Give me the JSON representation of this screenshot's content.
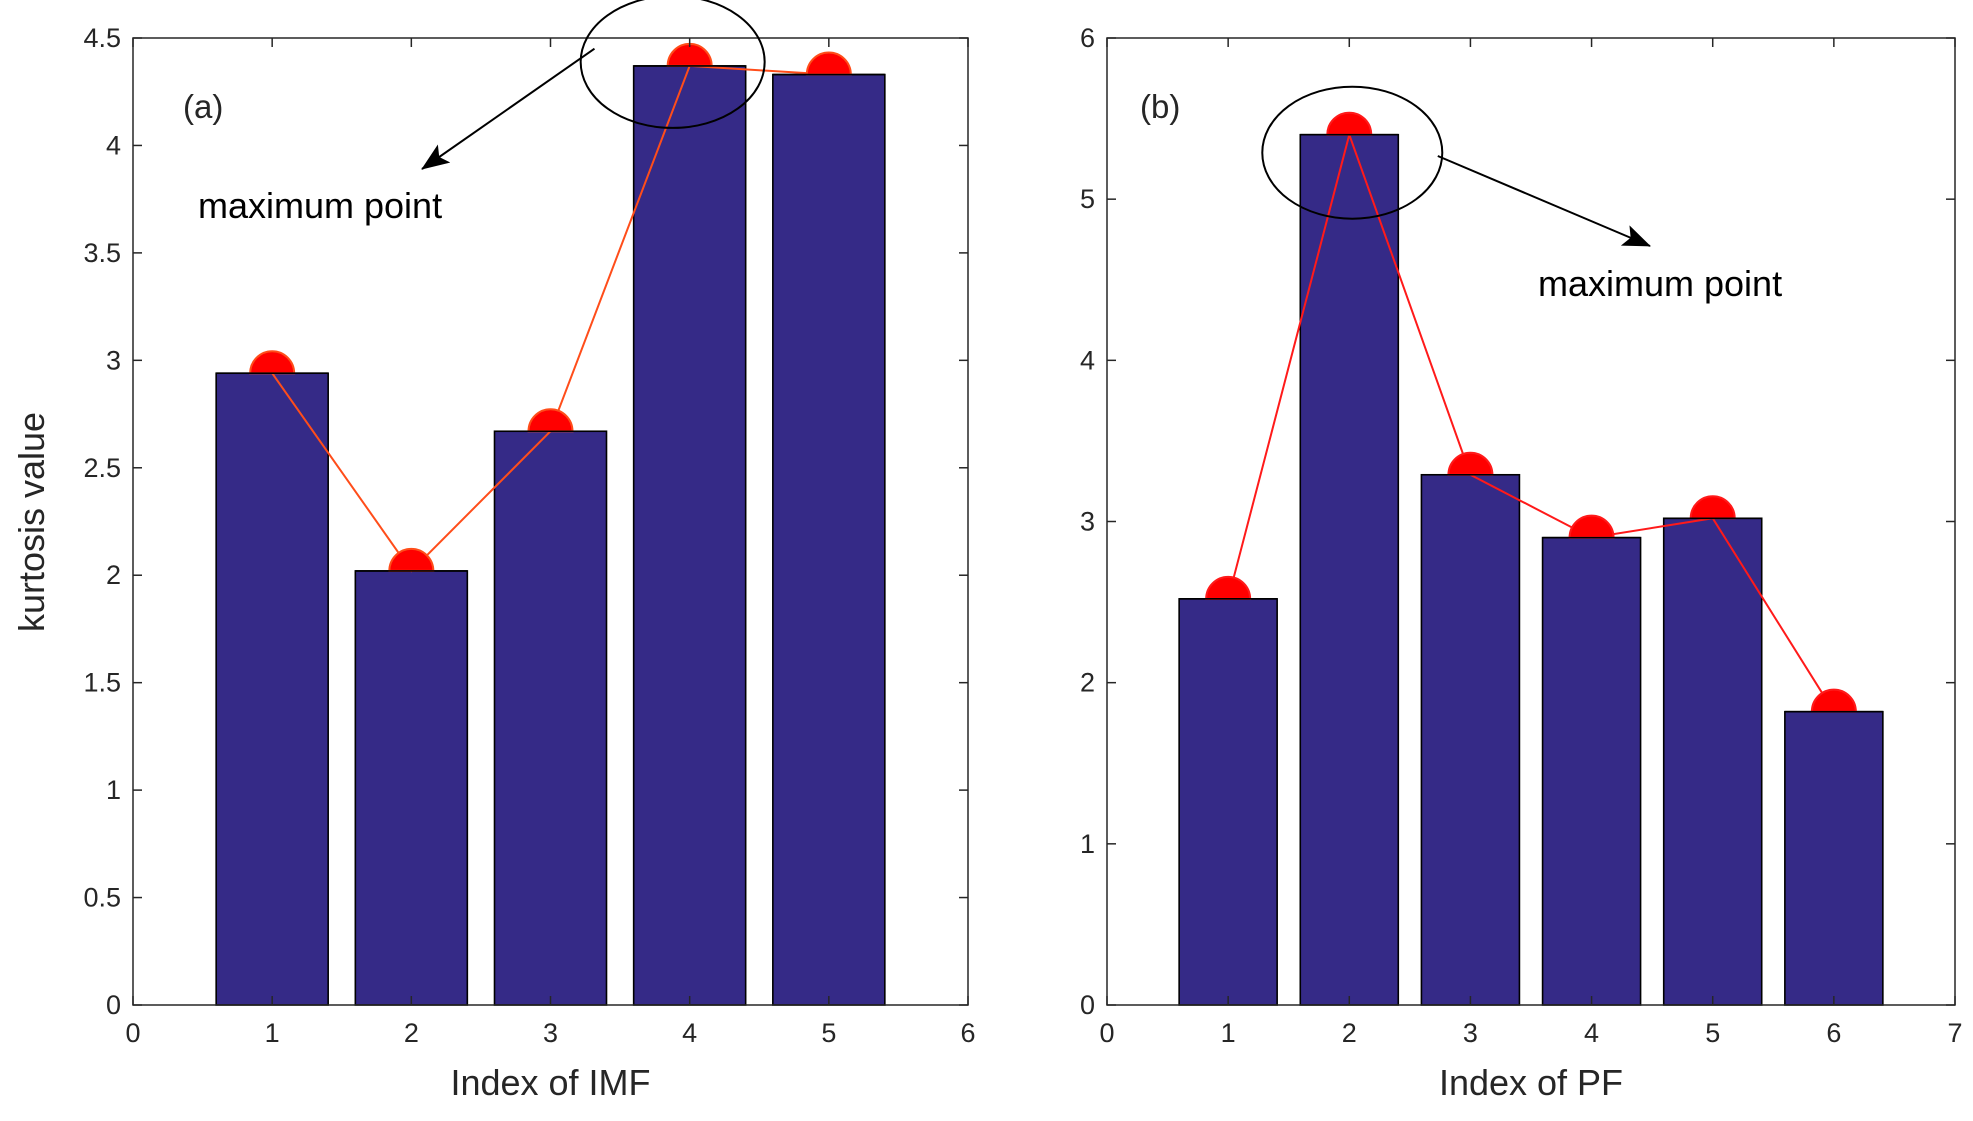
{
  "chart_data": [
    {
      "id": "a",
      "type": "bar",
      "panel_label": "(a)",
      "title": "",
      "xlabel": "Index of IMF",
      "ylabel": "kurtosis value",
      "xlim": [
        0,
        6
      ],
      "ylim": [
        0,
        4.5
      ],
      "xticks": [
        0,
        1,
        2,
        3,
        4,
        5,
        6
      ],
      "xtick_labels": [
        "0",
        "1",
        "2",
        "3",
        "4",
        "5",
        "6"
      ],
      "yticks": [
        0,
        0.5,
        1,
        1.5,
        2,
        2.5,
        3,
        3.5,
        4,
        4.5
      ],
      "ytick_labels": [
        "0",
        "0.5",
        "1",
        "1.5",
        "2",
        "2.5",
        "3",
        "3.5",
        "4",
        "4.5"
      ],
      "grid": false,
      "bar_color": "#352A87",
      "line_color": "#FF4D1A",
      "marker_color": "#FF0000",
      "series": [
        {
          "name": "kurtosis",
          "x": [
            1,
            2,
            3,
            4,
            5
          ],
          "values": [
            2.94,
            2.02,
            2.67,
            4.37,
            4.33
          ]
        }
      ],
      "annotation": {
        "text": "maximum point",
        "target_index": 4,
        "arrow": "from circle toward text"
      }
    },
    {
      "id": "b",
      "type": "bar",
      "panel_label": "(b)",
      "title": "",
      "xlabel": "Index of PF",
      "ylabel": "",
      "xlim": [
        0,
        7
      ],
      "ylim": [
        0,
        6
      ],
      "xticks": [
        0,
        1,
        2,
        3,
        4,
        5,
        6,
        7
      ],
      "xtick_labels": [
        "0",
        "1",
        "2",
        "3",
        "4",
        "5",
        "6",
        "7"
      ],
      "yticks": [
        0,
        1,
        2,
        3,
        4,
        5,
        6
      ],
      "ytick_labels": [
        "0",
        "1",
        "2",
        "3",
        "4",
        "5",
        "6"
      ],
      "grid": false,
      "bar_color": "#352A87",
      "line_color": "#FF1A1A",
      "marker_color": "#FF0000",
      "series": [
        {
          "name": "kurtosis",
          "x": [
            1,
            2,
            3,
            4,
            5,
            6
          ],
          "values": [
            2.52,
            5.4,
            3.29,
            2.9,
            3.02,
            1.82
          ]
        }
      ],
      "annotation": {
        "text": "maximum point",
        "target_index": 2,
        "arrow": "from circle toward text"
      }
    }
  ]
}
